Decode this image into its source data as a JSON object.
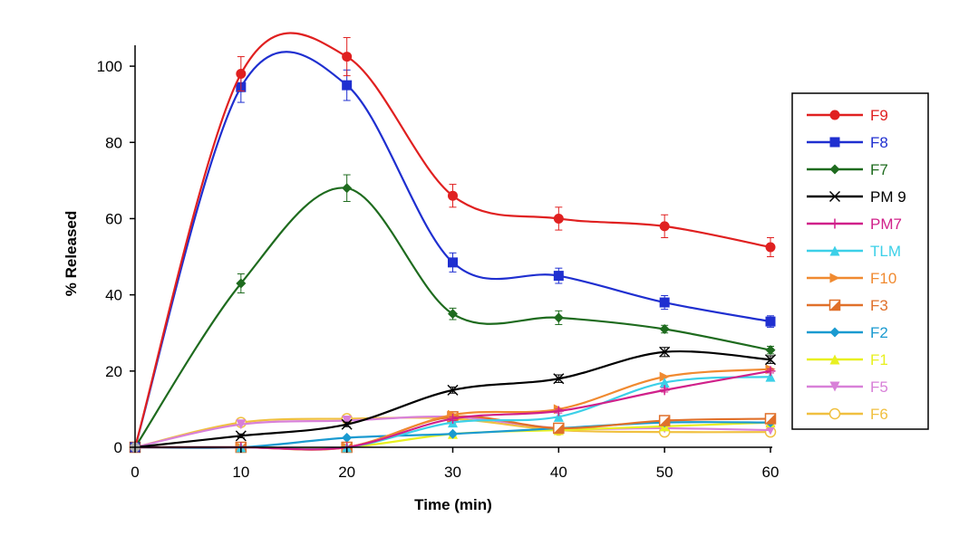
{
  "chart_data": {
    "type": "line",
    "title": "",
    "xlabel": "Time (min)",
    "ylabel": "% Released",
    "xlim": [
      0,
      60
    ],
    "ylim": [
      0,
      110
    ],
    "x_ticks": [
      0,
      10,
      20,
      30,
      40,
      50,
      60
    ],
    "y_ticks": [
      0,
      20,
      40,
      60,
      80,
      100
    ],
    "grid": false,
    "legend_position": "right",
    "x": [
      0,
      10,
      20,
      30,
      40,
      50,
      60
    ],
    "series": [
      {
        "name": "F9",
        "color": "#e02020",
        "marker": "circle",
        "values": [
          0,
          98,
          102.5,
          66,
          60,
          58,
          52.5
        ],
        "error": [
          0,
          4.5,
          5,
          3,
          3,
          3,
          2.5
        ]
      },
      {
        "name": "F8",
        "color": "#1f2fd0",
        "marker": "square",
        "values": [
          0,
          94.5,
          95,
          48.5,
          45,
          38,
          33
        ],
        "error": [
          0,
          4,
          4,
          2.5,
          2,
          1.8,
          1.5
        ]
      },
      {
        "name": "F7",
        "color": "#1e6b1e",
        "marker": "diamond",
        "values": [
          0,
          43,
          68,
          35,
          34,
          31,
          25.5
        ],
        "error": [
          0,
          2.5,
          3.5,
          1.5,
          1.8,
          1,
          1
        ]
      },
      {
        "name": "PM 9",
        "color": "#000000",
        "marker": "x",
        "values": [
          0,
          3,
          6,
          15,
          18,
          25,
          23
        ],
        "error": [
          0,
          0.5,
          0.6,
          0.8,
          1,
          1.2,
          1
        ]
      },
      {
        "name": "PM7",
        "color": "#d0208a",
        "marker": "plus",
        "values": [
          0,
          0,
          0,
          7.5,
          9.5,
          15,
          20
        ],
        "error": [
          0,
          0,
          0,
          0.5,
          0.5,
          0.5,
          0.5
        ]
      },
      {
        "name": "TLM",
        "color": "#3cd0e8",
        "marker": "triangle",
        "values": [
          0,
          0,
          0,
          6.5,
          8,
          17,
          18.5
        ],
        "error": [
          0,
          0,
          0,
          0,
          0,
          0,
          0
        ]
      },
      {
        "name": "F10",
        "color": "#f08a30",
        "marker": "triangle-right",
        "values": [
          0,
          0,
          0,
          8.5,
          10,
          18.5,
          20.5
        ],
        "error": [
          0,
          0,
          0,
          0,
          0,
          0,
          0
        ]
      },
      {
        "name": "F3",
        "color": "#e0702a",
        "marker": "square-half",
        "values": [
          0,
          0,
          0,
          8,
          5,
          7,
          7.5
        ],
        "error": [
          0,
          0,
          0,
          0,
          0,
          0,
          0
        ]
      },
      {
        "name": "F2",
        "color": "#1a9ad0",
        "marker": "diamond",
        "values": [
          0,
          0,
          2.5,
          3.5,
          5,
          6.5,
          6.5
        ],
        "error": [
          0,
          0,
          0,
          0,
          0,
          0,
          0
        ]
      },
      {
        "name": "F1",
        "color": "#e8f020",
        "marker": "triangle",
        "values": [
          0,
          0,
          0,
          3.5,
          4.5,
          5.5,
          6.5
        ],
        "error": [
          0,
          0,
          0,
          0,
          0,
          0,
          0
        ]
      },
      {
        "name": "F5",
        "color": "#d880d8",
        "marker": "triangle-down",
        "values": [
          0,
          6,
          7,
          8,
          5,
          5,
          4.5
        ],
        "error": [
          0,
          0,
          0,
          0,
          0,
          0,
          0
        ]
      },
      {
        "name": "F6",
        "color": "#f0c040",
        "marker": "circle-open",
        "values": [
          0,
          6.5,
          7.5,
          7.5,
          4.5,
          4,
          4
        ],
        "error": [
          0,
          0,
          0,
          0,
          0,
          0,
          0
        ]
      }
    ]
  }
}
